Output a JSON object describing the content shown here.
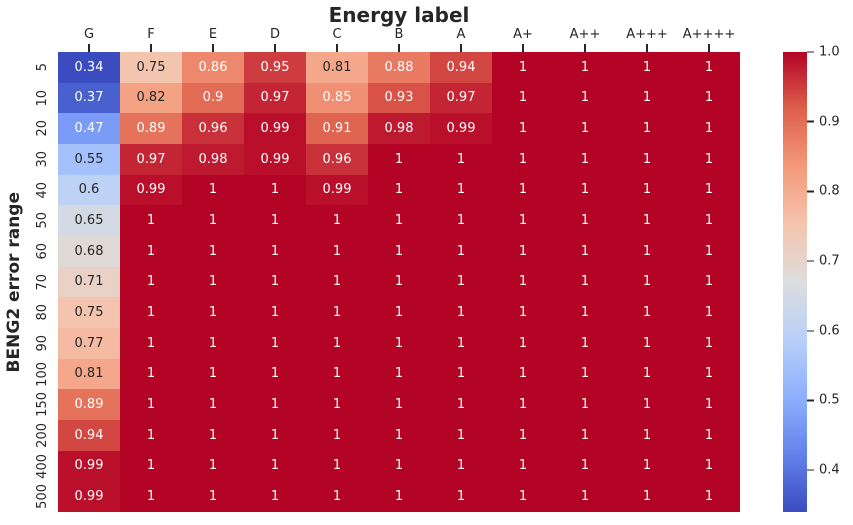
{
  "chart_data": {
    "type": "heatmap",
    "title": "Energy label",
    "xlabel": "",
    "ylabel": "BENG2 error range",
    "columns": [
      "G",
      "F",
      "E",
      "D",
      "C",
      "B",
      "A",
      "A+",
      "A++",
      "A+++",
      "A++++"
    ],
    "rows": [
      "5",
      "10",
      "20",
      "30",
      "40",
      "50",
      "60",
      "70",
      "80",
      "90",
      "100",
      "150",
      "200",
      "400",
      "500"
    ],
    "values": [
      [
        0.34,
        0.75,
        0.86,
        0.95,
        0.81,
        0.88,
        0.94,
        1,
        1,
        1,
        1
      ],
      [
        0.37,
        0.82,
        0.9,
        0.97,
        0.85,
        0.93,
        0.97,
        1,
        1,
        1,
        1
      ],
      [
        0.47,
        0.89,
        0.96,
        0.99,
        0.91,
        0.98,
        0.99,
        1,
        1,
        1,
        1
      ],
      [
        0.55,
        0.97,
        0.98,
        0.99,
        0.96,
        1,
        1,
        1,
        1,
        1,
        1
      ],
      [
        0.6,
        0.99,
        1,
        1,
        0.99,
        1,
        1,
        1,
        1,
        1,
        1
      ],
      [
        0.65,
        1,
        1,
        1,
        1,
        1,
        1,
        1,
        1,
        1,
        1
      ],
      [
        0.68,
        1,
        1,
        1,
        1,
        1,
        1,
        1,
        1,
        1,
        1
      ],
      [
        0.71,
        1,
        1,
        1,
        1,
        1,
        1,
        1,
        1,
        1,
        1
      ],
      [
        0.75,
        1,
        1,
        1,
        1,
        1,
        1,
        1,
        1,
        1,
        1
      ],
      [
        0.77,
        1,
        1,
        1,
        1,
        1,
        1,
        1,
        1,
        1,
        1
      ],
      [
        0.81,
        1,
        1,
        1,
        1,
        1,
        1,
        1,
        1,
        1,
        1
      ],
      [
        0.89,
        1,
        1,
        1,
        1,
        1,
        1,
        1,
        1,
        1,
        1
      ],
      [
        0.94,
        1,
        1,
        1,
        1,
        1,
        1,
        1,
        1,
        1,
        1
      ],
      [
        0.99,
        1,
        1,
        1,
        1,
        1,
        1,
        1,
        1,
        1,
        1
      ],
      [
        0.99,
        1,
        1,
        1,
        1,
        1,
        1,
        1,
        1,
        1,
        1
      ]
    ],
    "vmin": 0.34,
    "vmax": 1.0,
    "colormap": {
      "name": "coolwarm",
      "stops": [
        "#3b4cc0",
        "#6282ea",
        "#8db0fe",
        "#b8d0f9",
        "#dddddd",
        "#f5c4ad",
        "#f49a7b",
        "#de604d",
        "#b40426"
      ]
    },
    "colorbar": {
      "position": "right",
      "ticks": [
        {
          "v": 1.0,
          "label": "1.0"
        },
        {
          "v": 0.9,
          "label": "0.9"
        },
        {
          "v": 0.8,
          "label": "0.8"
        },
        {
          "v": 0.7,
          "label": "0.7"
        },
        {
          "v": 0.6,
          "label": "0.6"
        },
        {
          "v": 0.5,
          "label": "0.5"
        },
        {
          "v": 0.4,
          "label": "0.4"
        }
      ]
    },
    "annotation_colors": {
      "dark": "#262626",
      "light": "#ffffff"
    },
    "grid": false,
    "ylim": null
  }
}
